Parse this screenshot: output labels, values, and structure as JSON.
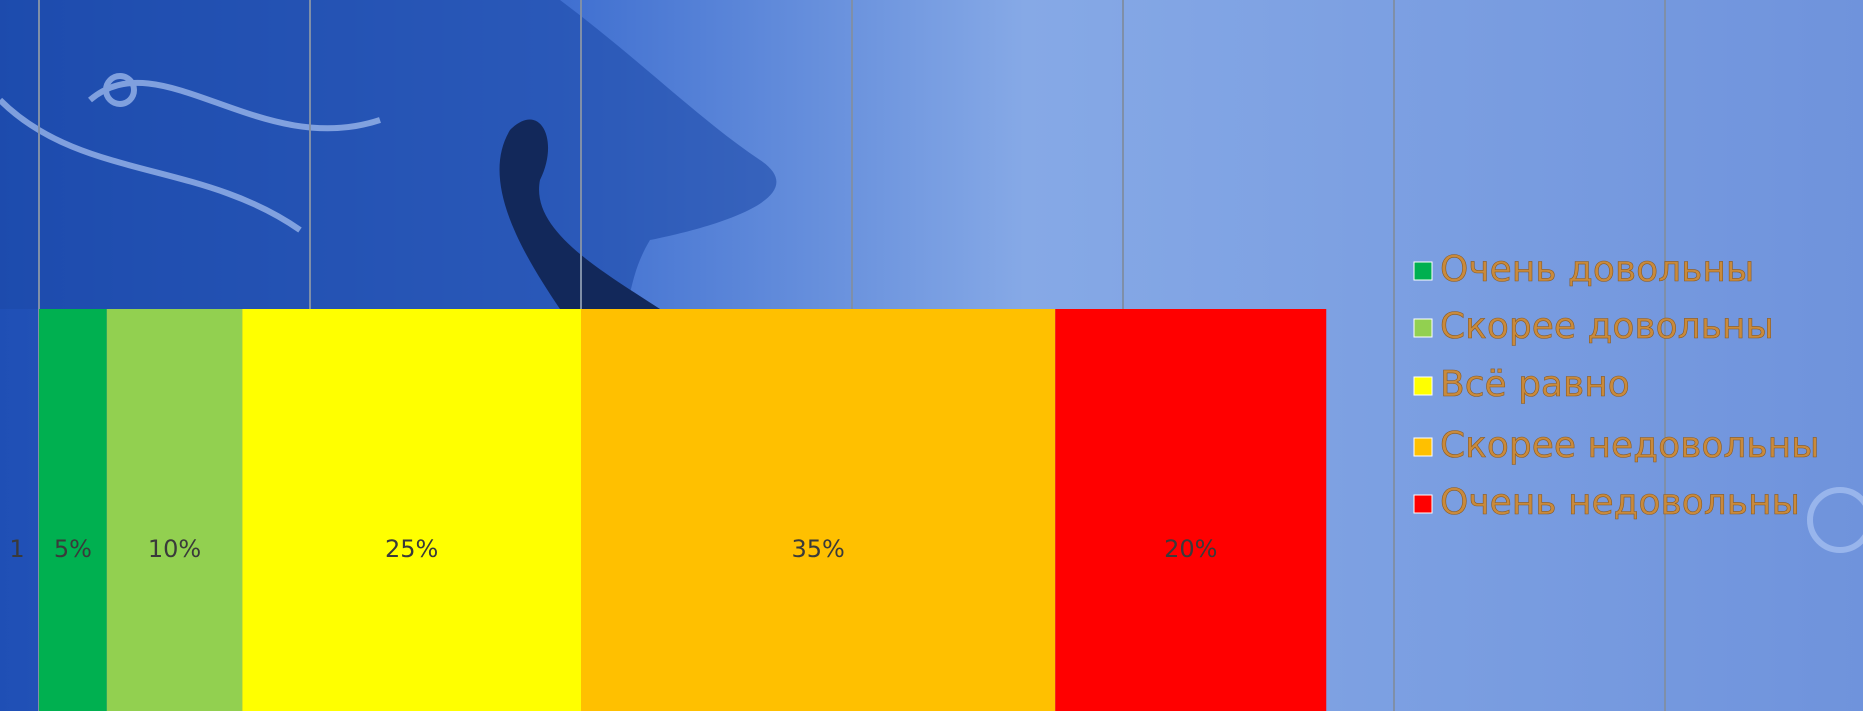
{
  "chart_data": {
    "type": "bar",
    "orientation": "horizontal",
    "stacked": true,
    "categories": [
      "1"
    ],
    "series": [
      {
        "name": "Очень довольны",
        "color": "#00b050",
        "values": [
          5
        ],
        "value_labels": [
          "5%"
        ]
      },
      {
        "name": "Скорее довольны",
        "color": "#92d050",
        "values": [
          10
        ],
        "value_labels": [
          "10%"
        ]
      },
      {
        "name": "Всё равно",
        "color": "#ffff00",
        "values": [
          25
        ],
        "value_labels": [
          "25%"
        ]
      },
      {
        "name": "Скорее недовольны",
        "color": "#ffc000",
        "values": [
          35
        ],
        "value_labels": [
          "35%"
        ]
      },
      {
        "name": "Очень недовольны",
        "color": "#ff0000",
        "values": [
          20
        ],
        "value_labels": [
          "20%"
        ]
      }
    ],
    "xlim": [
      0,
      120
    ],
    "xticks": [
      0,
      20,
      40,
      60,
      80,
      100,
      120
    ],
    "grid": true,
    "legend": "right"
  }
}
